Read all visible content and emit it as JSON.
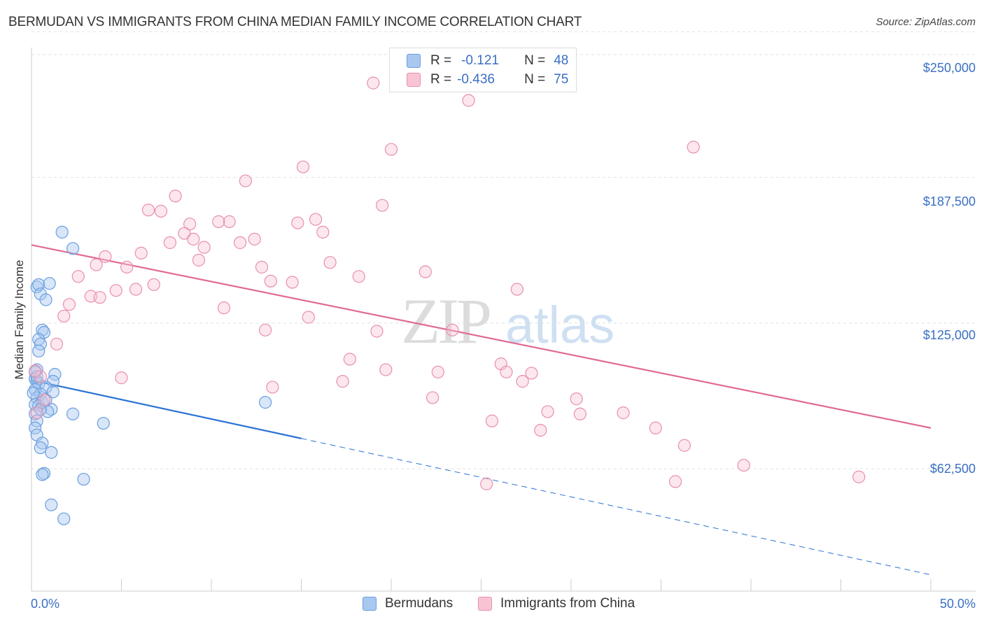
{
  "title": "BERMUDAN VS IMMIGRANTS FROM CHINA MEDIAN FAMILY INCOME CORRELATION CHART",
  "source": "Source: ZipAtlas.com",
  "watermark": {
    "zip": "ZIP",
    "atlas": "atlas"
  },
  "legend": {
    "rows": [
      {
        "r_label": "R =",
        "r_value": "-0.121",
        "n_label": "N =",
        "n_value": "48",
        "color": "#a8c8f0",
        "border": "#6a9ee0"
      },
      {
        "r_label": "R =",
        "r_value": "-0.436",
        "n_label": "N =",
        "n_value": "75",
        "color": "#f8c4d4",
        "border": "#e890aa"
      }
    ]
  },
  "bottom_legend": {
    "series1": "Bermudans",
    "series2": "Immigrants from China"
  },
  "chart_data": {
    "type": "scatter",
    "title": "BERMUDAN VS IMMIGRANTS FROM CHINA MEDIAN FAMILY INCOME CORRELATION CHART",
    "ylabel": "Median Family Income",
    "xlabel": "",
    "xlim": [
      0,
      50
    ],
    "ylim": [
      10000,
      260000
    ],
    "x_tick_labels": [
      "0.0%",
      "50.0%"
    ],
    "y_ticks": [
      62500,
      125000,
      187500,
      250000
    ],
    "y_tick_labels": [
      "$62,500",
      "$125,000",
      "$187,500",
      "$250,000"
    ],
    "grid": true,
    "series": [
      {
        "name": "Bermudans",
        "color": "#6a9ee0",
        "fill": "rgba(168,200,240,0.45)",
        "line_color": "#2a72d4",
        "trend": {
          "x0": 0,
          "y0": 100500,
          "x1": 15,
          "y1": 75500,
          "dash_to_x": 50,
          "dash_to_y": 17000
        },
        "points": [
          [
            1.7,
            164000
          ],
          [
            2.3,
            157000
          ],
          [
            0.3,
            140500
          ],
          [
            0.4,
            141500
          ],
          [
            1.0,
            142000
          ],
          [
            0.5,
            137500
          ],
          [
            0.8,
            135000
          ],
          [
            0.6,
            122000
          ],
          [
            0.7,
            121000
          ],
          [
            0.4,
            118000
          ],
          [
            0.5,
            116000
          ],
          [
            0.4,
            113000
          ],
          [
            0.3,
            105000
          ],
          [
            1.3,
            103000
          ],
          [
            0.2,
            101000
          ],
          [
            0.3,
            100000
          ],
          [
            1.2,
            100000
          ],
          [
            0.4,
            99000
          ],
          [
            0.8,
            97500
          ],
          [
            0.2,
            96500
          ],
          [
            1.2,
            95500
          ],
          [
            0.5,
            94500
          ],
          [
            0.3,
            93000
          ],
          [
            0.6,
            91000
          ],
          [
            0.2,
            90000
          ],
          [
            0.4,
            89500
          ],
          [
            1.1,
            88000
          ],
          [
            0.9,
            87000
          ],
          [
            0.2,
            86000
          ],
          [
            2.3,
            86000
          ],
          [
            0.3,
            83000
          ],
          [
            4.0,
            82000
          ],
          [
            0.2,
            80000
          ],
          [
            0.3,
            77000
          ],
          [
            0.6,
            73500
          ],
          [
            0.5,
            71500
          ],
          [
            1.1,
            69500
          ],
          [
            0.7,
            60500
          ],
          [
            0.6,
            60000
          ],
          [
            2.9,
            58000
          ],
          [
            1.1,
            47000
          ],
          [
            1.8,
            41000
          ],
          [
            13.0,
            91000
          ],
          [
            0.2,
            104000
          ],
          [
            0.3,
            102000
          ],
          [
            0.5,
            88000
          ],
          [
            0.1,
            95000
          ],
          [
            0.8,
            92000
          ]
        ]
      },
      {
        "name": "Immigrants from China",
        "color": "#e890aa",
        "fill": "rgba(248,196,212,0.4)",
        "line_color": "#e06a94",
        "trend": {
          "x0": 0,
          "y0": 158500,
          "x1": 50,
          "y1": 80000
        },
        "points": [
          [
            19.0,
            228000
          ],
          [
            24.3,
            220500
          ],
          [
            20.0,
            199500
          ],
          [
            36.8,
            200500
          ],
          [
            15.1,
            192000
          ],
          [
            11.9,
            186000
          ],
          [
            8.0,
            179500
          ],
          [
            6.5,
            173500
          ],
          [
            7.2,
            173000
          ],
          [
            19.5,
            175500
          ],
          [
            15.8,
            169500
          ],
          [
            11.0,
            168500
          ],
          [
            14.8,
            168000
          ],
          [
            10.4,
            168500
          ],
          [
            8.8,
            167500
          ],
          [
            8.5,
            163500
          ],
          [
            16.2,
            164000
          ],
          [
            9.0,
            161000
          ],
          [
            12.4,
            161000
          ],
          [
            7.7,
            159500
          ],
          [
            11.6,
            159500
          ],
          [
            9.6,
            157500
          ],
          [
            6.1,
            155000
          ],
          [
            4.1,
            153500
          ],
          [
            9.3,
            152000
          ],
          [
            16.6,
            151000
          ],
          [
            3.6,
            150000
          ],
          [
            5.3,
            149000
          ],
          [
            12.8,
            149000
          ],
          [
            21.9,
            147000
          ],
          [
            18.2,
            145000
          ],
          [
            2.6,
            145000
          ],
          [
            13.3,
            143000
          ],
          [
            14.5,
            142500
          ],
          [
            6.8,
            141500
          ],
          [
            27.0,
            139500
          ],
          [
            5.8,
            139500
          ],
          [
            4.7,
            139000
          ],
          [
            3.3,
            136500
          ],
          [
            3.8,
            136000
          ],
          [
            2.1,
            133000
          ],
          [
            10.7,
            131500
          ],
          [
            1.8,
            128000
          ],
          [
            15.4,
            127500
          ],
          [
            13.0,
            122000
          ],
          [
            19.2,
            121500
          ],
          [
            23.4,
            122000
          ],
          [
            1.4,
            116000
          ],
          [
            17.7,
            109500
          ],
          [
            26.1,
            107500
          ],
          [
            19.7,
            105000
          ],
          [
            22.6,
            104000
          ],
          [
            26.4,
            104000
          ],
          [
            27.8,
            103500
          ],
          [
            5.0,
            101500
          ],
          [
            17.3,
            100000
          ],
          [
            27.3,
            100000
          ],
          [
            13.4,
            97500
          ],
          [
            22.3,
            93000
          ],
          [
            30.3,
            92500
          ],
          [
            28.7,
            87000
          ],
          [
            32.9,
            86500
          ],
          [
            30.5,
            86000
          ],
          [
            25.6,
            83000
          ],
          [
            34.7,
            80000
          ],
          [
            28.3,
            79000
          ],
          [
            36.3,
            72500
          ],
          [
            39.6,
            64000
          ],
          [
            46.0,
            59000
          ],
          [
            35.8,
            57000
          ],
          [
            25.3,
            56000
          ],
          [
            0.5,
            102000
          ],
          [
            0.7,
            92000
          ],
          [
            0.3,
            86500
          ],
          [
            0.2,
            104500
          ]
        ]
      }
    ]
  }
}
